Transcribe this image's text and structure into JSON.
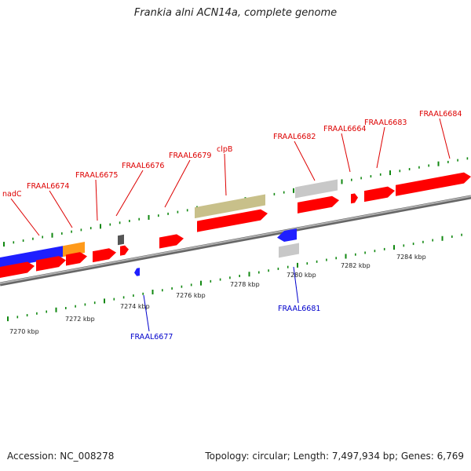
{
  "title": "Frankia alni ACN14a, complete genome",
  "footer": {
    "accession": "Accession: NC_008278",
    "topology": "Topology: circular; Length: 7,497,934 bp; Genes: 6,769"
  },
  "colors": {
    "gene_red": "#ff0000",
    "gene_blue": "#1f1fff",
    "gene_orange": "#ff9a1a",
    "gene_gray": "#c8c8c8",
    "gene_darkgray": "#555555",
    "gene_olive": "#c8c08a",
    "backbone": "#888888",
    "tick_green": "#118811",
    "label_red": "#dd0000",
    "label_blue": "#0000cc"
  },
  "tick_labels": [
    "7270 kbp",
    "7272 kbp",
    "7274 kbp",
    "7276 kbp",
    "7278 kbp",
    "7280 kbp",
    "7282 kbp",
    "7284 kbp"
  ],
  "gene_labels": [
    {
      "name": "nadC",
      "strand": "forward"
    },
    {
      "name": "FRAAL6674",
      "strand": "forward"
    },
    {
      "name": "FRAAL6675",
      "strand": "forward"
    },
    {
      "name": "FRAAL6676",
      "strand": "forward"
    },
    {
      "name": "FRAAL6679",
      "strand": "forward"
    },
    {
      "name": "clpB",
      "strand": "forward"
    },
    {
      "name": "FRAAL6682",
      "strand": "forward"
    },
    {
      "name": "FRAAL6664",
      "strand": "forward"
    },
    {
      "name": "FRAAL6683",
      "strand": "forward"
    },
    {
      "name": "FRAAL6684",
      "strand": "forward"
    },
    {
      "name": "FRAAL6677",
      "strand": "reverse"
    },
    {
      "name": "FRAAL6681",
      "strand": "reverse"
    }
  ]
}
